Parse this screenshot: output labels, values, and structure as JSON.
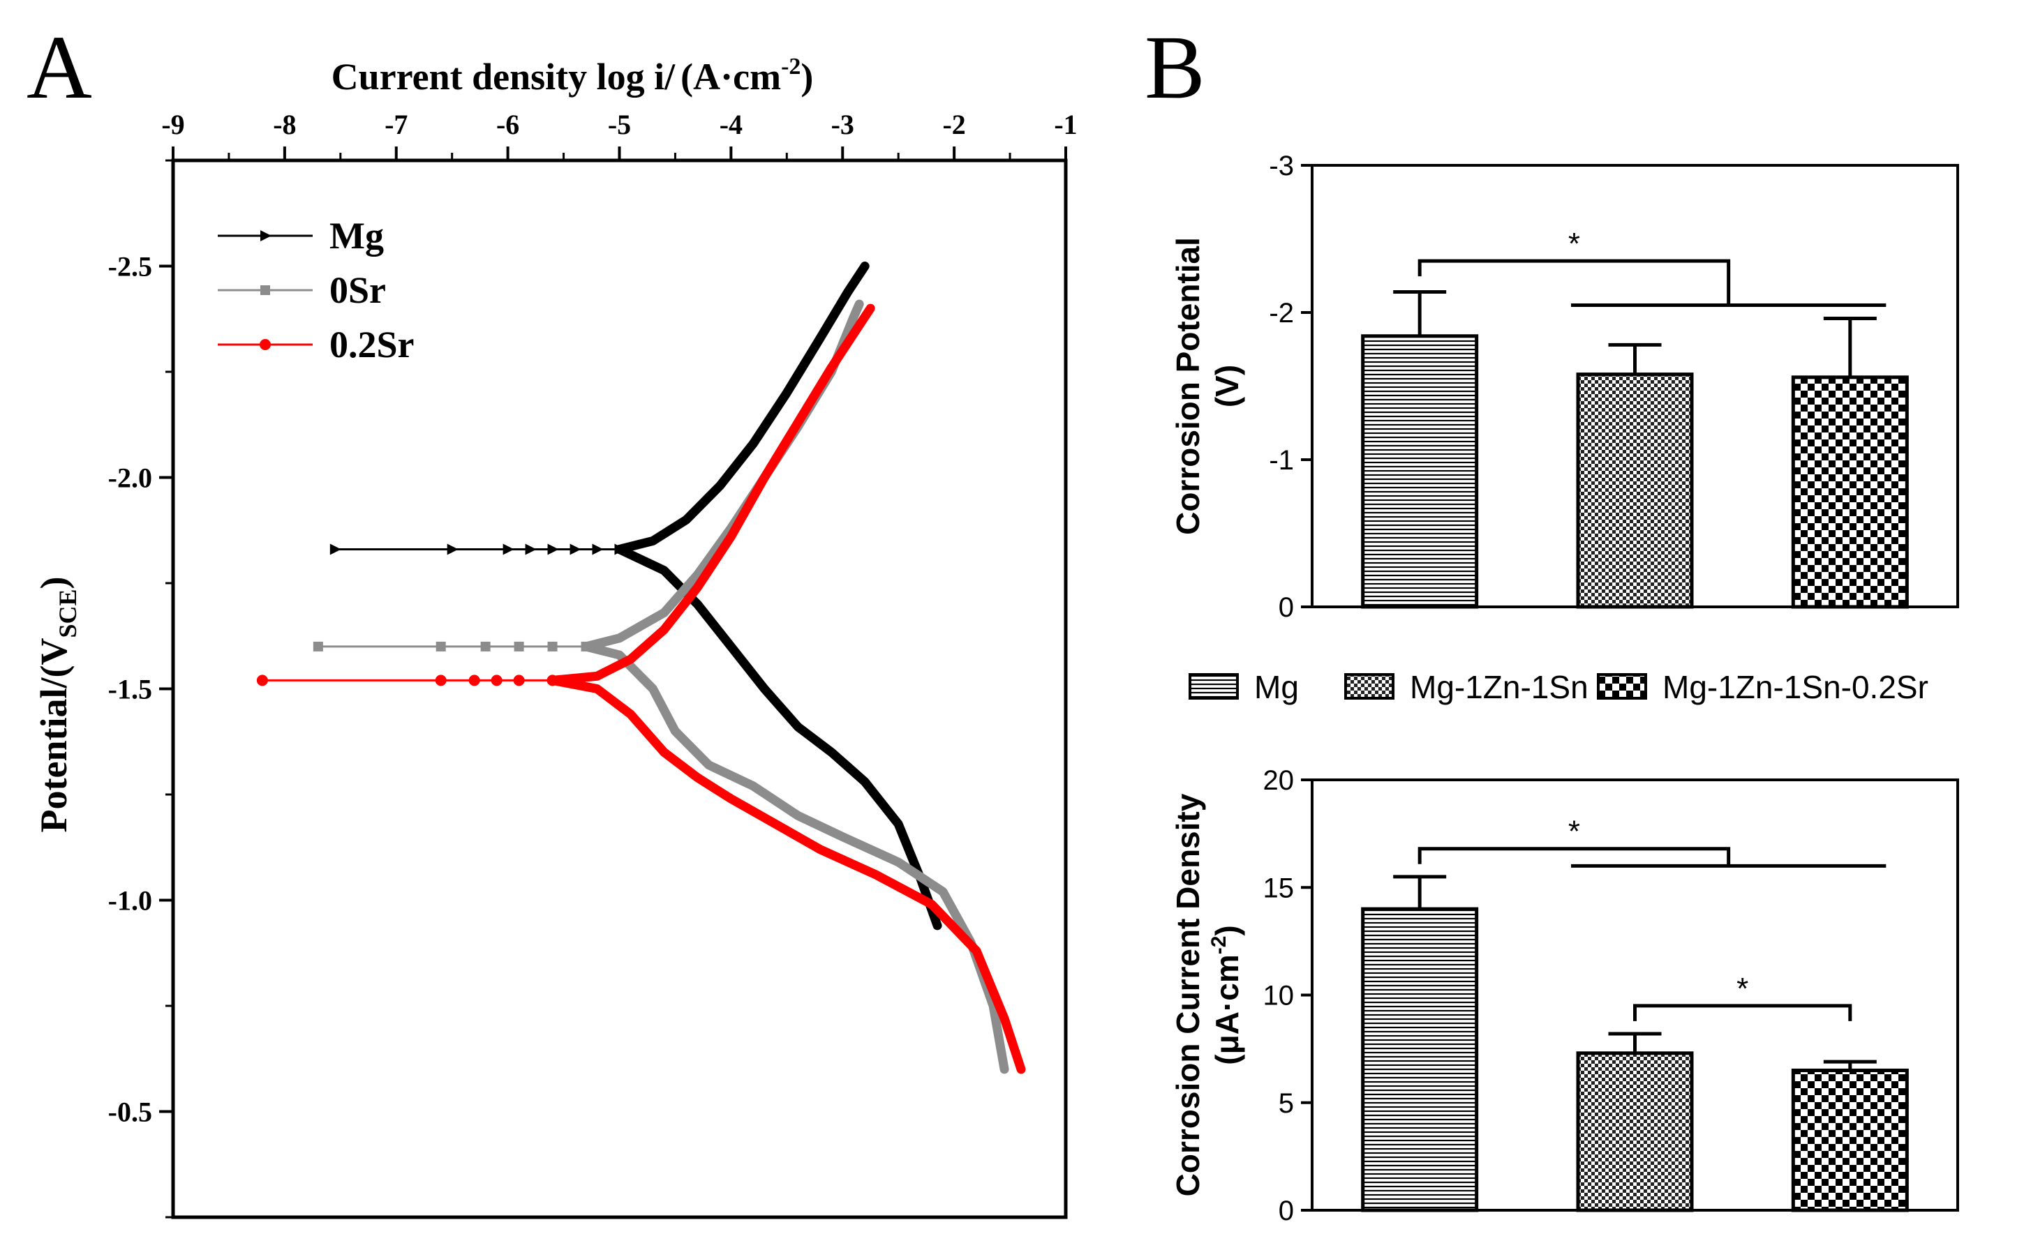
{
  "panel_a": {
    "letter": "A",
    "x_label": "Current density log i/",
    "x_unit_prefix": "(A·cm",
    "x_unit_exp": "-2",
    "x_unit_suffix": ")",
    "y_label": "Potential/(V",
    "y_label_sub": "SCE",
    "y_label_close": ")"
  },
  "panel_b": {
    "letter": "B"
  },
  "chart_data": [
    {
      "id": "tafel",
      "type": "line",
      "x_axis": {
        "position": "top",
        "range": [
          -9,
          -1
        ],
        "ticks": [
          "-9",
          "-8",
          "-7",
          "-6",
          "-5",
          "-4",
          "-3",
          "-2",
          "-1"
        ]
      },
      "y_axis": {
        "range": [
          -2.75,
          -0.25
        ],
        "reversed": true,
        "ticks": [
          "-2.5",
          "-2.0",
          "-1.5",
          "-1.0",
          "-0.5"
        ],
        "tick_values": [
          -2.5,
          -2.0,
          -1.5,
          -1.0,
          -0.5
        ]
      },
      "legend_position": "top-left",
      "series": [
        {
          "name": "Mg",
          "color": "#000000",
          "marker": "triangle-right",
          "ecorr": -1.83,
          "flat": [
            [
              -7.55,
              -1.83
            ],
            [
              -6.5,
              -1.83
            ],
            [
              -6.0,
              -1.83
            ],
            [
              -5.8,
              -1.83
            ],
            [
              -5.6,
              -1.83
            ],
            [
              -5.4,
              -1.83
            ],
            [
              -5.2,
              -1.83
            ],
            [
              -5.0,
              -1.83
            ]
          ],
          "anodic": [
            [
              -5.0,
              -1.83
            ],
            [
              -4.7,
              -1.85
            ],
            [
              -4.4,
              -1.9
            ],
            [
              -4.1,
              -1.98
            ],
            [
              -3.8,
              -2.08
            ],
            [
              -3.5,
              -2.2
            ],
            [
              -3.2,
              -2.33
            ],
            [
              -2.95,
              -2.44
            ],
            [
              -2.8,
              -2.5
            ]
          ],
          "cathodic": [
            [
              -5.0,
              -1.83
            ],
            [
              -4.6,
              -1.78
            ],
            [
              -4.3,
              -1.7
            ],
            [
              -4.0,
              -1.6
            ],
            [
              -3.7,
              -1.5
            ],
            [
              -3.4,
              -1.41
            ],
            [
              -3.1,
              -1.35
            ],
            [
              -2.8,
              -1.28
            ],
            [
              -2.5,
              -1.18
            ],
            [
              -2.3,
              -1.05
            ],
            [
              -2.15,
              -0.94
            ]
          ]
        },
        {
          "name": "0Sr",
          "color": "#8c8c8c",
          "marker": "square",
          "ecorr": -1.6,
          "flat": [
            [
              -7.7,
              -1.6
            ],
            [
              -6.6,
              -1.6
            ],
            [
              -6.2,
              -1.6
            ],
            [
              -5.9,
              -1.6
            ],
            [
              -5.6,
              -1.6
            ],
            [
              -5.3,
              -1.6
            ]
          ],
          "anodic": [
            [
              -5.3,
              -1.6
            ],
            [
              -5.0,
              -1.62
            ],
            [
              -4.6,
              -1.68
            ],
            [
              -4.3,
              -1.77
            ],
            [
              -4.0,
              -1.88
            ],
            [
              -3.7,
              -2.0
            ],
            [
              -3.4,
              -2.12
            ],
            [
              -3.1,
              -2.25
            ],
            [
              -2.9,
              -2.38
            ],
            [
              -2.85,
              -2.41
            ]
          ],
          "cathodic": [
            [
              -5.3,
              -1.6
            ],
            [
              -5.0,
              -1.58
            ],
            [
              -4.7,
              -1.5
            ],
            [
              -4.5,
              -1.4
            ],
            [
              -4.2,
              -1.32
            ],
            [
              -3.8,
              -1.27
            ],
            [
              -3.4,
              -1.2
            ],
            [
              -3.0,
              -1.15
            ],
            [
              -2.5,
              -1.09
            ],
            [
              -2.1,
              -1.02
            ],
            [
              -1.85,
              -0.9
            ],
            [
              -1.65,
              -0.75
            ],
            [
              -1.55,
              -0.6
            ]
          ]
        },
        {
          "name": "0.2Sr",
          "color": "#ff0000",
          "marker": "circle",
          "ecorr": -1.52,
          "flat": [
            [
              -8.2,
              -1.52
            ],
            [
              -6.6,
              -1.52
            ],
            [
              -6.3,
              -1.52
            ],
            [
              -6.1,
              -1.52
            ],
            [
              -5.9,
              -1.52
            ],
            [
              -5.6,
              -1.52
            ]
          ],
          "anodic": [
            [
              -5.6,
              -1.52
            ],
            [
              -5.2,
              -1.53
            ],
            [
              -4.9,
              -1.57
            ],
            [
              -4.6,
              -1.64
            ],
            [
              -4.3,
              -1.74
            ],
            [
              -4.0,
              -1.86
            ],
            [
              -3.7,
              -2.0
            ],
            [
              -3.4,
              -2.13
            ],
            [
              -3.1,
              -2.26
            ],
            [
              -2.85,
              -2.36
            ],
            [
              -2.75,
              -2.4
            ]
          ],
          "cathodic": [
            [
              -5.6,
              -1.52
            ],
            [
              -5.2,
              -1.5
            ],
            [
              -4.9,
              -1.44
            ],
            [
              -4.6,
              -1.35
            ],
            [
              -4.3,
              -1.29
            ],
            [
              -4.0,
              -1.24
            ],
            [
              -3.6,
              -1.18
            ],
            [
              -3.2,
              -1.12
            ],
            [
              -2.7,
              -1.06
            ],
            [
              -2.2,
              -0.99
            ],
            [
              -1.8,
              -0.88
            ],
            [
              -1.55,
              -0.72
            ],
            [
              -1.4,
              -0.6
            ]
          ]
        }
      ]
    },
    {
      "id": "corrosion-potential",
      "type": "bar",
      "ylabel_line1": "Corrosion Potential",
      "ylabel_line2": "(V)",
      "ylim": [
        0,
        -3
      ],
      "y_ticks": [
        "0",
        "-1",
        "-2",
        "-3"
      ],
      "y_tick_values": [
        0,
        -1,
        -2,
        -3
      ],
      "categories": [
        "Mg",
        "Mg-1Zn-1Sn",
        "Mg-1Zn-1Sn-0.2Sr"
      ],
      "values": [
        -1.84,
        -1.58,
        -1.56
      ],
      "errors": [
        0.3,
        0.2,
        0.4
      ],
      "significance": [
        {
          "label": "*",
          "from": 0,
          "to_group": [
            1,
            2
          ],
          "y": -2.35,
          "drop": -2.05
        }
      ]
    },
    {
      "id": "corrosion-current-density",
      "type": "bar",
      "ylabel_line1": "Corrosion Current Density",
      "ylabel_line2_prefix": "(μA·cm",
      "ylabel_line2_exp": "-2",
      "ylabel_line2_suffix": ")",
      "ylim": [
        0,
        20
      ],
      "y_ticks": [
        "0",
        "5",
        "10",
        "15",
        "20"
      ],
      "y_tick_values": [
        0,
        5,
        10,
        15,
        20
      ],
      "categories": [
        "Mg",
        "Mg-1Zn-1Sn",
        "Mg-1Zn-1Sn-0.2Sr"
      ],
      "values": [
        14.0,
        7.3,
        6.5
      ],
      "errors": [
        1.5,
        0.9,
        0.4
      ],
      "significance": [
        {
          "label": "*",
          "from": 0,
          "to_group": [
            1,
            2
          ],
          "y": 16.8,
          "drop": 16.0
        },
        {
          "label": "*",
          "from": 1,
          "to": 2,
          "y": 9.5
        }
      ]
    }
  ],
  "legend_b": {
    "items": [
      {
        "label": "Mg",
        "pattern": "hlines"
      },
      {
        "label": "Mg-1Zn-1Sn",
        "pattern": "fine-check"
      },
      {
        "label": "Mg-1Zn-1Sn-0.2Sr",
        "pattern": "coarse-check"
      }
    ]
  }
}
